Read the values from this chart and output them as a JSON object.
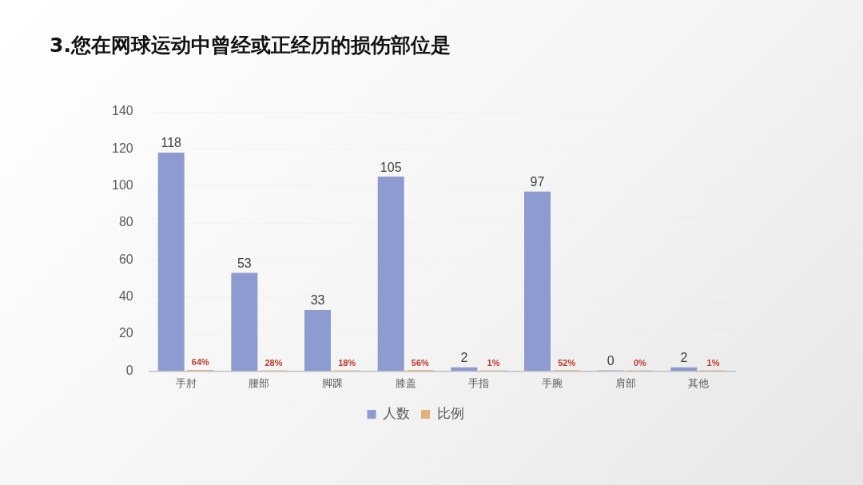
{
  "chart_data": {
    "type": "bar",
    "title": "3.您在网球运动中曾经或正经历的损伤部位是",
    "categories": [
      "手肘",
      "腰部",
      "脚踝",
      "膝盖",
      "手指",
      "手腕",
      "肩部",
      "其他"
    ],
    "series": [
      {
        "name": "人数",
        "color": "#8e9bd0",
        "values": [
          118,
          53,
          33,
          105,
          2,
          97,
          0,
          2
        ],
        "value_labels": [
          "118",
          "53",
          "33",
          "105",
          "2",
          "97",
          "0",
          "2"
        ]
      },
      {
        "name": "比例",
        "color": "#e3b27c",
        "values": [
          0.64,
          0.28,
          0.18,
          0.56,
          0.01,
          0.52,
          0,
          0.01
        ],
        "value_labels": [
          "64%",
          "28%",
          "18%",
          "56%",
          "1%",
          "52%",
          "0%",
          "1%"
        ]
      }
    ],
    "ylim": [
      0,
      140
    ],
    "yticks": [
      0,
      20,
      40,
      60,
      80,
      100,
      120,
      140
    ],
    "grid": "y",
    "legend": "bottom"
  }
}
